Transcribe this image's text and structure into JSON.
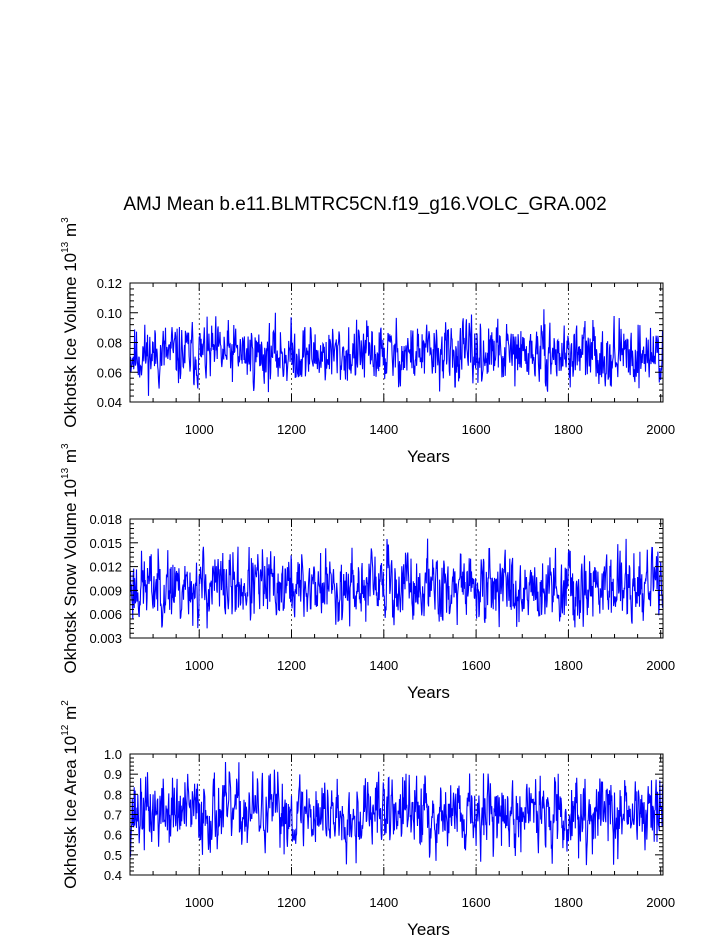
{
  "figure": {
    "title": "AMJ Mean b.e11.BLMTRC5CN.f19_g16.VOLC_GRA.002"
  },
  "chart_data": [
    {
      "type": "line",
      "ylabel_main": "Okhotsk Ice Volume 10",
      "ylabel_exp": "13",
      "ylabel_unit": " m",
      "ylabel_unit_exp": "3",
      "xlabel": "Years",
      "xlim": [
        850,
        2005
      ],
      "ylim": [
        0.04,
        0.12
      ],
      "xticks": [
        1000,
        1200,
        1400,
        1600,
        1800,
        2000
      ],
      "yticks": [
        "0.04",
        "0.06",
        "0.08",
        "0.10",
        "0.12"
      ],
      "mean": 0.072,
      "spread": 0.0095,
      "min": 0.042,
      "max": 0.113,
      "seed": 11,
      "line_color": "#0000ff"
    },
    {
      "type": "line",
      "ylabel_main": "Okhotsk Snow Volume 10",
      "ylabel_exp": "13",
      "ylabel_unit": " m",
      "ylabel_unit_exp": "3",
      "xlabel": "Years",
      "xlim": [
        850,
        2005
      ],
      "ylim": [
        0.003,
        0.018
      ],
      "xticks": [
        1000,
        1200,
        1400,
        1600,
        1800,
        2000
      ],
      "yticks": [
        "0.003",
        "0.006",
        "0.009",
        "0.012",
        "0.015",
        "0.018"
      ],
      "mean": 0.0095,
      "spread": 0.0021,
      "min": 0.0042,
      "max": 0.0165,
      "seed": 23,
      "line_color": "#0000ff"
    },
    {
      "type": "line",
      "ylabel_main": "Okhotsk Ice Area 10",
      "ylabel_exp": "12",
      "ylabel_unit": " m",
      "ylabel_unit_exp": "2",
      "xlabel": "Years",
      "xlim": [
        850,
        2005
      ],
      "ylim": [
        0.4,
        1.0
      ],
      "xticks": [
        1000,
        1200,
        1400,
        1600,
        1800,
        2000
      ],
      "yticks": [
        "0.4",
        "0.5",
        "0.6",
        "0.7",
        "0.8",
        "0.9",
        "1.0"
      ],
      "mean": 0.71,
      "spread": 0.085,
      "min": 0.44,
      "max": 0.97,
      "seed": 37,
      "line_color": "#0000ff"
    }
  ]
}
